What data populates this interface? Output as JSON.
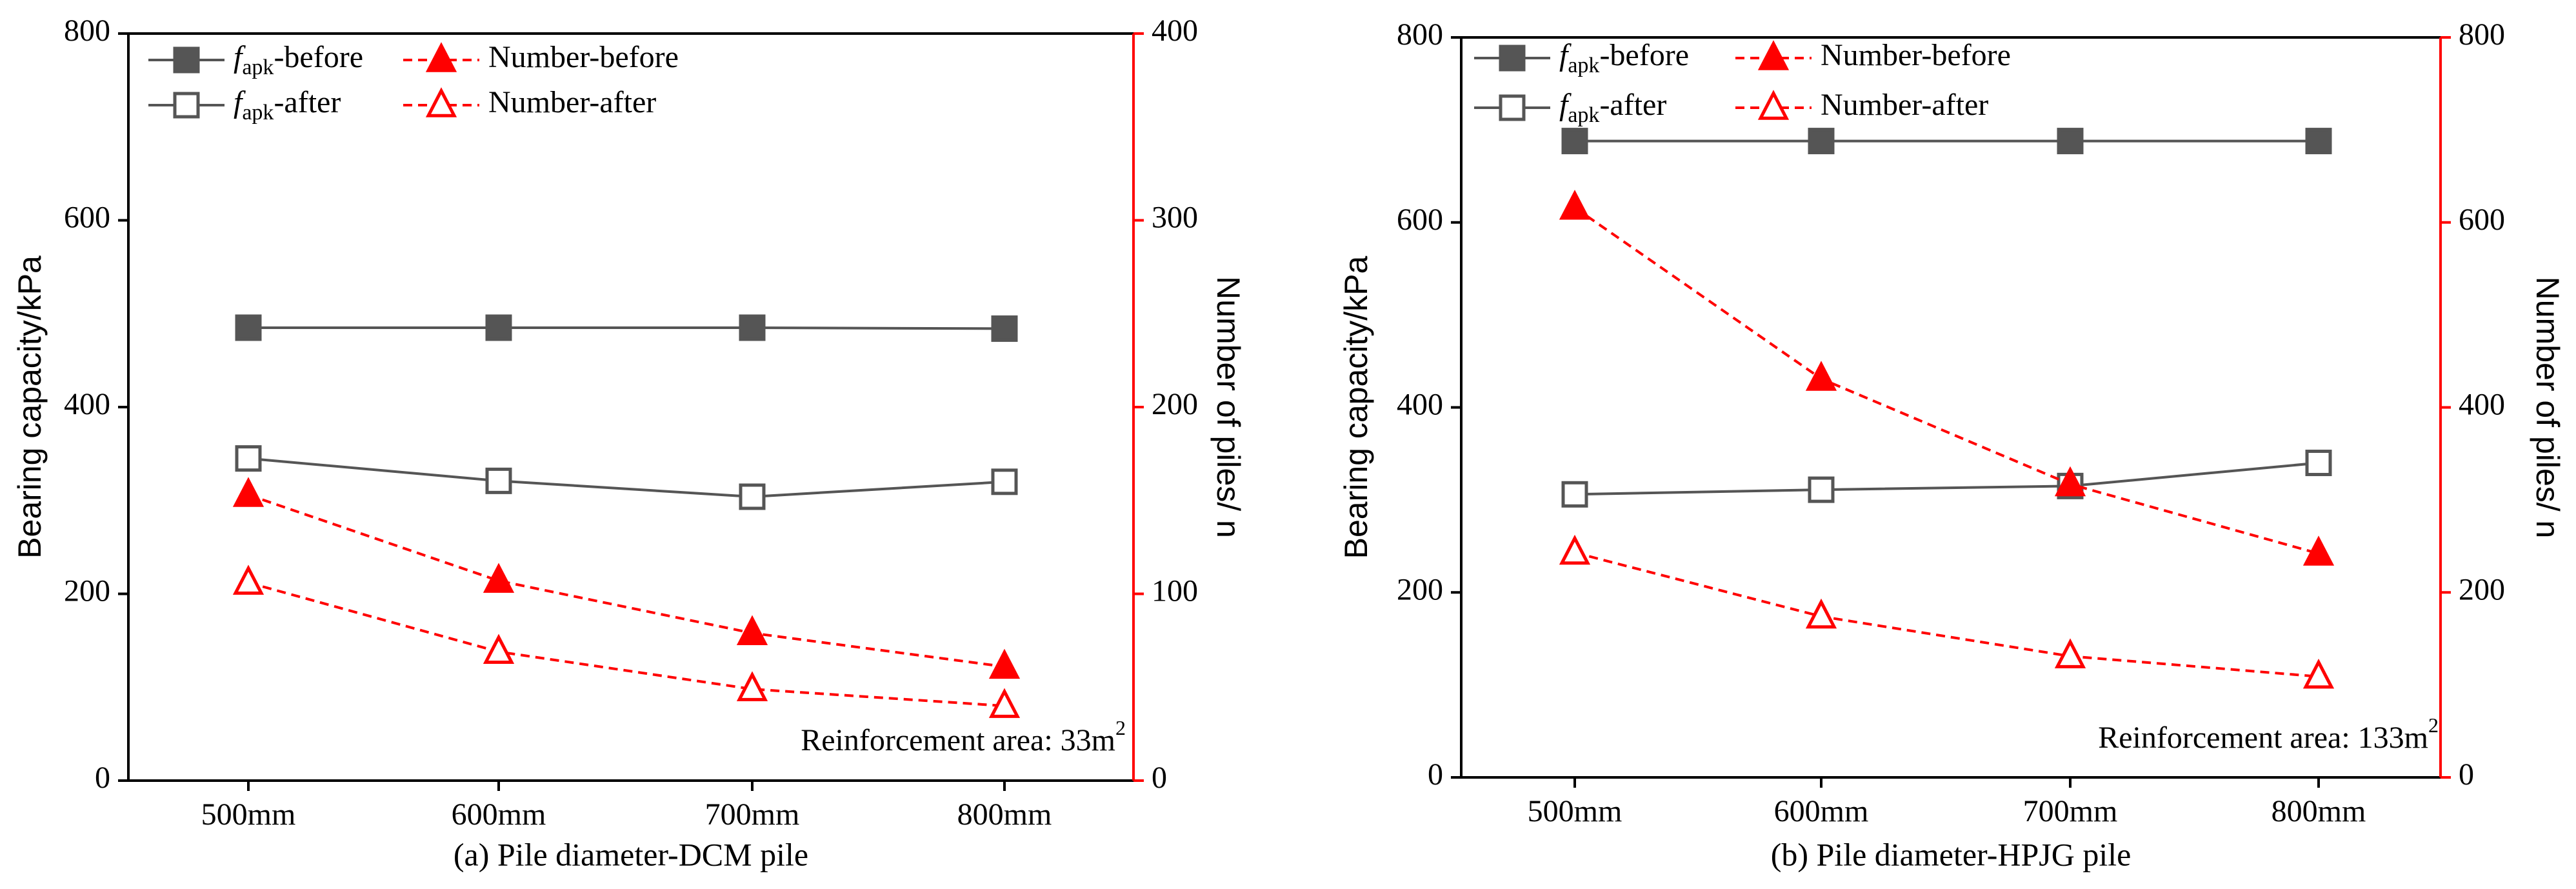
{
  "chart_data": [
    {
      "id": "a",
      "type": "line",
      "caption": "(a) Pile diameter-DCM pile",
      "categories": [
        "500mm",
        "600mm",
        "700mm",
        "800mm"
      ],
      "ylabel_left": "Bearing capacity/kPa",
      "ylabel_right": "Number of piles/ n",
      "ylim_left": [
        0,
        800
      ],
      "ylim_right": [
        0,
        400
      ],
      "yticks_left": [
        0,
        200,
        400,
        600,
        800
      ],
      "yticks_right": [
        0,
        100,
        200,
        300,
        400
      ],
      "annotation": {
        "text": "Reinforcement area: 33m",
        "sup": "2"
      },
      "legend_position": "top-left",
      "series": [
        {
          "name_main": "f",
          "name_sub": "apk",
          "name_suffix": "-before",
          "axis": "left",
          "color": "#555555",
          "marker": "square-filled",
          "line": "solid",
          "values": [
            485,
            485,
            485,
            484
          ]
        },
        {
          "name_main": "f",
          "name_sub": "apk",
          "name_suffix": "-after",
          "axis": "left",
          "color": "#555555",
          "marker": "square-open",
          "line": "solid",
          "values": [
            345,
            321,
            304,
            320
          ]
        },
        {
          "name_main": "Number-before",
          "name_sub": "",
          "name_suffix": "",
          "axis": "right",
          "color": "#ff0000",
          "marker": "triangle-filled",
          "line": "dashed",
          "values": [
            153,
            107,
            79,
            61
          ]
        },
        {
          "name_main": "Number-after",
          "name_sub": "",
          "name_suffix": "",
          "axis": "right",
          "color": "#ff0000",
          "marker": "triangle-open",
          "line": "dashed",
          "values": [
            106,
            69,
            49,
            40
          ]
        }
      ]
    },
    {
      "id": "b",
      "type": "line",
      "caption": "(b) Pile diameter-HPJG pile",
      "categories": [
        "500mm",
        "600mm",
        "700mm",
        "800mm"
      ],
      "ylabel_left": "Bearing capacity/kPa",
      "ylabel_right": "Number of piles/ n",
      "ylim_left": [
        0,
        800
      ],
      "ylim_right": [
        0,
        800
      ],
      "yticks_left": [
        0,
        200,
        400,
        600,
        800
      ],
      "yticks_right": [
        0,
        200,
        400,
        600,
        800
      ],
      "annotation": {
        "text": "Reinforcement area: 133m",
        "sup": "2"
      },
      "legend_position": "top-left",
      "series": [
        {
          "name_main": "f",
          "name_sub": "apk",
          "name_suffix": "-before",
          "axis": "left",
          "color": "#555555",
          "marker": "square-filled",
          "line": "solid",
          "values": [
            688,
            688,
            688,
            688
          ]
        },
        {
          "name_main": "f",
          "name_sub": "apk",
          "name_suffix": "-after",
          "axis": "left",
          "color": "#555555",
          "marker": "square-open",
          "line": "solid",
          "values": [
            306,
            311,
            315,
            340
          ]
        },
        {
          "name_main": "Number-before",
          "name_sub": "",
          "name_suffix": "",
          "axis": "right",
          "color": "#ff0000",
          "marker": "triangle-filled",
          "line": "dashed",
          "values": [
            616,
            431,
            317,
            242
          ]
        },
        {
          "name_main": "Number-after",
          "name_sub": "",
          "name_suffix": "",
          "axis": "right",
          "color": "#ff0000",
          "marker": "triangle-open",
          "line": "dashed",
          "values": [
            243,
            174,
            131,
            109
          ]
        }
      ]
    }
  ]
}
